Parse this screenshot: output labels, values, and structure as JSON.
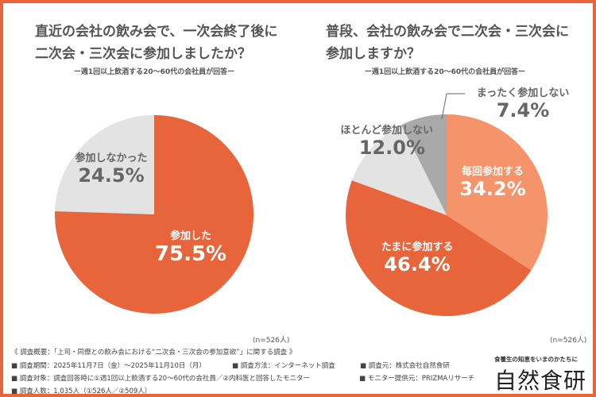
{
  "colors": {
    "border": "#E8643A",
    "dark_orange": "#E8643A",
    "light_orange": "#F5936A",
    "light_grey": "#E3E3E3",
    "dark_grey": "#A9A9A9"
  },
  "chart_data": [
    {
      "type": "pie",
      "title": "直近の会社の飲み会で、一次会終了後に二次会・三次会に参加しましたか？",
      "subtitle": "ー週1回以上飲酒する20～60代の会社員が回答ー",
      "note": "(n=526人)",
      "slices": [
        {
          "label": "参加した",
          "value": 75.5,
          "display": "75.5%",
          "color": "#E8643A"
        },
        {
          "label": "参加しなかった",
          "value": 24.5,
          "display": "24.5%",
          "color": "#E3E3E3"
        }
      ]
    },
    {
      "type": "pie",
      "title": "普段、会社の飲み会で二次会・三次会に参加しますか？",
      "subtitle": "ー週1回以上飲酒する20～60代の会社員が回答ー",
      "note": "(n=526人)",
      "slices": [
        {
          "label": "毎回参加する",
          "value": 34.2,
          "display": "34.2%",
          "color": "#F5936A"
        },
        {
          "label": "たまに参加する",
          "value": 46.4,
          "display": "46.4%",
          "color": "#E8643A"
        },
        {
          "label": "ほとんど参加しない",
          "value": 12.0,
          "display": "12.0%",
          "color": "#E3E3E3"
        },
        {
          "label": "まったく参加しない",
          "value": 7.4,
          "display": "7.4%",
          "color": "#A9A9A9"
        }
      ]
    }
  ],
  "titles": {
    "left_line1": "直近の会社の飲み会で、一次会終了後に",
    "left_line2": "二次会・三次会に参加しましたか？",
    "right_line1": "普段、会社の飲み会で二次会・三次会に",
    "right_line2": "参加しますか？"
  },
  "footer": {
    "overview": "《 調査概要：「上司・同僚との飲み会における“二次会・三次会の参加意欲”」に関する調査 》",
    "period": "■ 調査期間：2025年11月7日（金）～2025年11月10日（月）",
    "method": "■ 調査方法：インターネット調査",
    "source": "■ 調査元：株式会社自然食研",
    "target": "■ 調査対象：調査回答時に①週1回以上飲酒する20～60代の会社員／②内科医と回答したモニター",
    "provider": "■ モニター提供元：PRIZMAリサーチ",
    "count": "■ 調査人数：1,035人（①526人／②509人）"
  },
  "logo": {
    "tagline": "食養生の知恵をいまのかたちに",
    "name": "自然食研"
  }
}
